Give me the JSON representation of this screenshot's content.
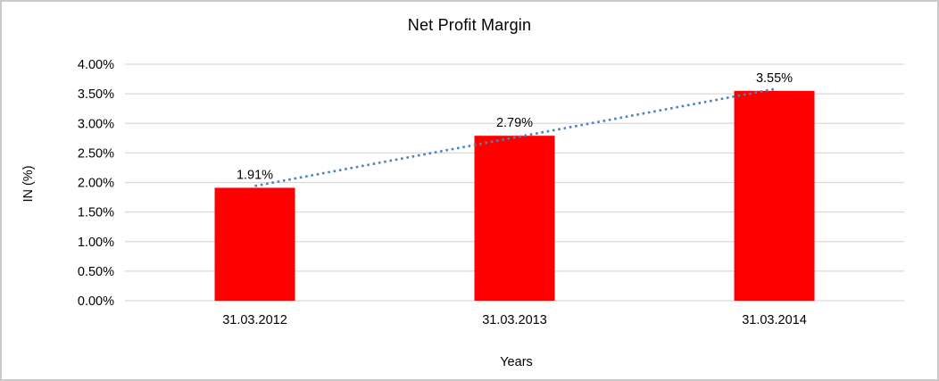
{
  "chart_data": {
    "type": "bar",
    "title": "Net Profit Margin",
    "xlabel": "Years",
    "ylabel": "IN (%)",
    "categories": [
      "31.03.2012",
      "31.03.2013",
      "31.03.2014"
    ],
    "values": [
      1.91,
      2.79,
      3.55
    ],
    "data_labels": [
      "1.91%",
      "2.79%",
      "3.55%"
    ],
    "ylim": [
      0,
      4
    ],
    "ytick_step": 0.5,
    "ytick_labels": [
      "0.00%",
      "0.50%",
      "1.00%",
      "1.50%",
      "2.00%",
      "2.50%",
      "3.00%",
      "3.50%",
      "4.00%"
    ],
    "grid": "horizontal",
    "legend": "none",
    "bar_color": "#FF0000",
    "gridline_color": "#D9D9D9",
    "trendline": {
      "type": "linear",
      "style": "dotted",
      "color": "#4F81BD",
      "from_value": 1.91,
      "to_value": 3.55
    }
  }
}
